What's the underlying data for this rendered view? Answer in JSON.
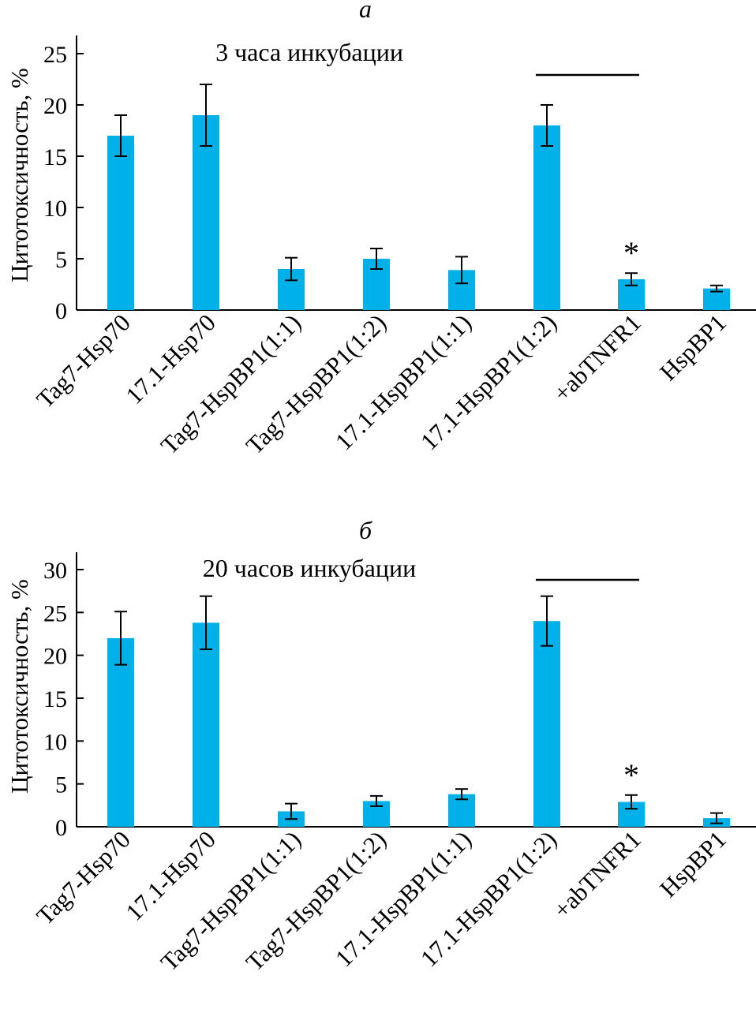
{
  "chart_data": [
    {
      "type": "bar",
      "panel_label": "а",
      "title": "3 часа инкубации",
      "ylabel": "Цитотоксичность, %",
      "xlabel": "",
      "ylim": [
        0,
        25
      ],
      "yticks": [
        0,
        5,
        10,
        15,
        20,
        25
      ],
      "grid": false,
      "bar_color": "#00b0e8",
      "categories": [
        "Tag7-Hsp70",
        "17.1-Hsp70",
        "Tag7-HspBP1(1:1)",
        "Tag7-HspBP1(1:2)",
        "17.1-HspBP1(1:1)",
        "17.1-HspBP1(1:2)",
        "+abTNFR1",
        "HspBP1"
      ],
      "values": [
        17,
        19,
        4,
        5,
        3.9,
        18,
        3,
        2.1
      ],
      "errors": [
        2,
        3,
        1.1,
        1,
        1.3,
        2,
        0.6,
        0.3
      ],
      "annotations": [
        {
          "category": "+abTNFR1",
          "text": "*"
        }
      ],
      "bracket": {
        "from": "17.1-HspBP1(1:2)",
        "to": "+abTNFR1"
      }
    },
    {
      "type": "bar",
      "panel_label": "б",
      "title": "20 часов инкубации",
      "ylabel": "Цитотоксичность, %",
      "xlabel": "",
      "ylim": [
        0,
        30
      ],
      "yticks": [
        0,
        5,
        10,
        15,
        20,
        25,
        30
      ],
      "grid": false,
      "bar_color": "#00b0e8",
      "categories": [
        "Tag7-Hsp70",
        "17.1-Hsp70",
        "Tag7-HspBP1(1:1)",
        "Tag7-HspBP1(1:2)",
        "17.1-HspBP1(1:1)",
        "17.1-HspBP1(1:2)",
        "+abTNFR1",
        "HspBP1"
      ],
      "values": [
        22,
        23.8,
        1.8,
        3,
        3.8,
        24,
        2.9,
        1
      ],
      "errors": [
        3.1,
        3.1,
        0.9,
        0.6,
        0.6,
        2.9,
        0.8,
        0.6
      ],
      "annotations": [
        {
          "category": "+abTNFR1",
          "text": "*"
        }
      ],
      "bracket": {
        "from": "17.1-HspBP1(1:2)",
        "to": "+abTNFR1"
      }
    }
  ]
}
